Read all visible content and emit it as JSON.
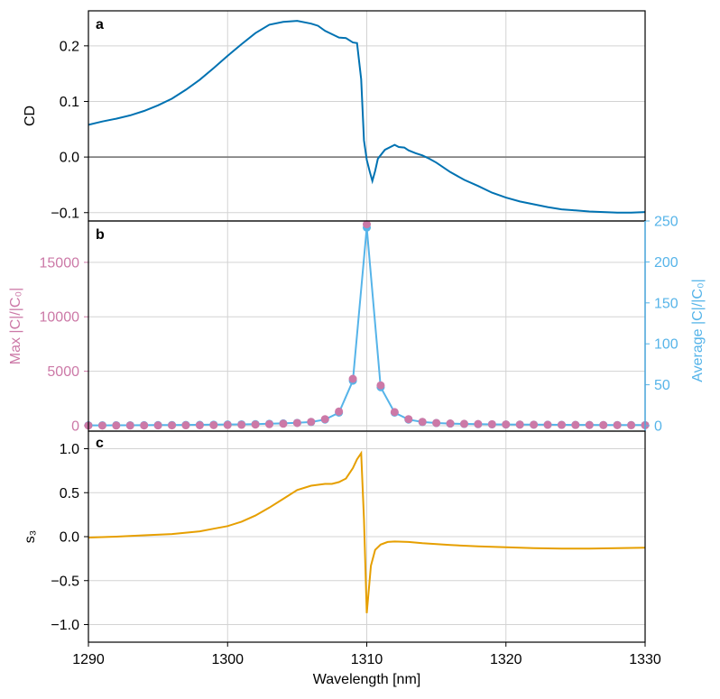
{
  "colors": {
    "cd_line": "#0072b2",
    "max_marker": "#cc79a7",
    "avg_line": "#56b4e9",
    "s3_line": "#e69f00",
    "zero_line": "#808080",
    "grid": "#d3d3d3",
    "axis": "#000000"
  },
  "chart_data": [
    {
      "type": "line",
      "panel_label": "a",
      "ylabel": "CD",
      "xlim": [
        1290,
        1330
      ],
      "ylim": [
        -0.115,
        0.263
      ],
      "yticks": [
        -0.1,
        0.0,
        0.1,
        0.2
      ],
      "ytick_labels": [
        "−0.1",
        "0.0",
        "0.1",
        "0.2"
      ],
      "grid": true,
      "reference_line_y": 0,
      "series": [
        {
          "x": [
            1290,
            1291,
            1292,
            1293,
            1294,
            1295,
            1296,
            1297,
            1298,
            1299,
            1300,
            1301,
            1302,
            1303,
            1304,
            1305,
            1306,
            1306.5,
            1307,
            1307.5,
            1308,
            1308.5,
            1309,
            1309.3,
            1309.6,
            1309.8,
            1310,
            1310.2,
            1310.4,
            1310.6,
            1310.8,
            1311.3,
            1312,
            1312.3,
            1312.7,
            1313,
            1313.5,
            1314,
            1314.5,
            1315,
            1316,
            1317,
            1318,
            1319,
            1320,
            1321,
            1322,
            1323,
            1324,
            1325,
            1326,
            1327,
            1328,
            1329,
            1330
          ],
          "y": [
            0.058,
            0.064,
            0.069,
            0.075,
            0.083,
            0.093,
            0.105,
            0.121,
            0.139,
            0.16,
            0.182,
            0.203,
            0.223,
            0.238,
            0.243,
            0.245,
            0.24,
            0.236,
            0.227,
            0.221,
            0.215,
            0.214,
            0.206,
            0.205,
            0.14,
            0.03,
            -0.005,
            -0.025,
            -0.043,
            -0.025,
            -0.003,
            0.013,
            0.022,
            0.018,
            0.017,
            0.012,
            0.007,
            0.003,
            -0.003,
            -0.01,
            -0.027,
            -0.041,
            -0.052,
            -0.064,
            -0.073,
            -0.08,
            -0.085,
            -0.09,
            -0.094,
            -0.096,
            -0.098,
            -0.099,
            -0.1,
            -0.1,
            -0.099
          ]
        }
      ]
    },
    {
      "type": "line",
      "panel_label": "b",
      "ylabel": "Max |C|/|C₀|",
      "y2label": "Average |C|/|C₀|",
      "xlim": [
        1290,
        1330
      ],
      "ylim": [
        -500,
        18800
      ],
      "y2lim": [
        -6.6,
        250
      ],
      "yticks": [
        0,
        5000,
        10000,
        15000
      ],
      "y2ticks": [
        0,
        50,
        100,
        150,
        200,
        250
      ],
      "grid": true,
      "series": [
        {
          "name": "Max |C|/|C₀|",
          "axis": "left",
          "x": [
            1290,
            1291,
            1292,
            1293,
            1294,
            1295,
            1296,
            1297,
            1298,
            1299,
            1300,
            1301,
            1302,
            1303,
            1304,
            1305,
            1306,
            1307,
            1308,
            1309,
            1310,
            1311,
            1312,
            1313,
            1314,
            1315,
            1316,
            1317,
            1318,
            1319,
            1320,
            1321,
            1322,
            1323,
            1324,
            1325,
            1326,
            1327,
            1328,
            1329,
            1330
          ],
          "y": [
            10,
            12,
            14,
            17,
            20,
            24,
            29,
            35,
            42,
            52,
            65,
            82,
            105,
            140,
            180,
            250,
            350,
            600,
            1300,
            4300,
            18500,
            3700,
            1250,
            600,
            350,
            250,
            200,
            170,
            150,
            130,
            115,
            100,
            90,
            80,
            72,
            65,
            60,
            55,
            50,
            46,
            42
          ]
        },
        {
          "name": "Average |C|/|C₀|",
          "axis": "right",
          "x": [
            1290,
            1291,
            1292,
            1293,
            1294,
            1295,
            1296,
            1297,
            1298,
            1299,
            1300,
            1301,
            1302,
            1303,
            1304,
            1305,
            1306,
            1307,
            1308,
            1309,
            1310,
            1311,
            1312,
            1313,
            1314,
            1315,
            1316,
            1317,
            1318,
            1319,
            1320,
            1321,
            1322,
            1323,
            1324,
            1325,
            1326,
            1327,
            1328,
            1329,
            1330
          ],
          "y": [
            0.5,
            0.5,
            0.6,
            0.6,
            0.7,
            0.8,
            0.9,
            1.0,
            1.1,
            1.3,
            1.5,
            1.7,
            2.0,
            2.4,
            2.9,
            3.5,
            4.5,
            7.5,
            16,
            55,
            242,
            47,
            16,
            7.5,
            4.5,
            3.3,
            2.6,
            2.2,
            1.9,
            1.7,
            1.5,
            1.4,
            1.3,
            1.2,
            1.1,
            1.0,
            0.95,
            0.9,
            0.85,
            0.8,
            0.75
          ]
        }
      ]
    },
    {
      "type": "line",
      "panel_label": "c",
      "ylabel": "s₃",
      "xlabel": "Wavelength [nm]",
      "xlim": [
        1290,
        1330
      ],
      "ylim": [
        -1.2,
        1.2
      ],
      "xticks": [
        1290,
        1300,
        1310,
        1320,
        1330
      ],
      "yticks": [
        -1.0,
        -0.5,
        0.0,
        0.5,
        1.0
      ],
      "ytick_labels": [
        "−1.0",
        "−0.5",
        "0.0",
        "0.5",
        "1.0"
      ],
      "grid": true,
      "series": [
        {
          "x": [
            1290,
            1292,
            1294,
            1296,
            1298,
            1299,
            1300,
            1301,
            1302,
            1303,
            1304,
            1305,
            1306,
            1306.5,
            1307,
            1307.5,
            1308,
            1308.5,
            1309,
            1309.3,
            1309.6,
            1309.8,
            1310,
            1310.3,
            1310.6,
            1311,
            1311.5,
            1312,
            1313,
            1314,
            1316,
            1318,
            1320,
            1322,
            1324,
            1326,
            1328,
            1330
          ],
          "y": [
            -0.01,
            0.0,
            0.015,
            0.03,
            0.06,
            0.09,
            0.12,
            0.17,
            0.24,
            0.33,
            0.43,
            0.53,
            0.58,
            0.59,
            0.6,
            0.6,
            0.62,
            0.66,
            0.78,
            0.88,
            0.95,
            0.2,
            -0.87,
            -0.33,
            -0.15,
            -0.09,
            -0.06,
            -0.055,
            -0.06,
            -0.075,
            -0.095,
            -0.11,
            -0.12,
            -0.13,
            -0.135,
            -0.135,
            -0.13,
            -0.125
          ]
        }
      ]
    }
  ]
}
